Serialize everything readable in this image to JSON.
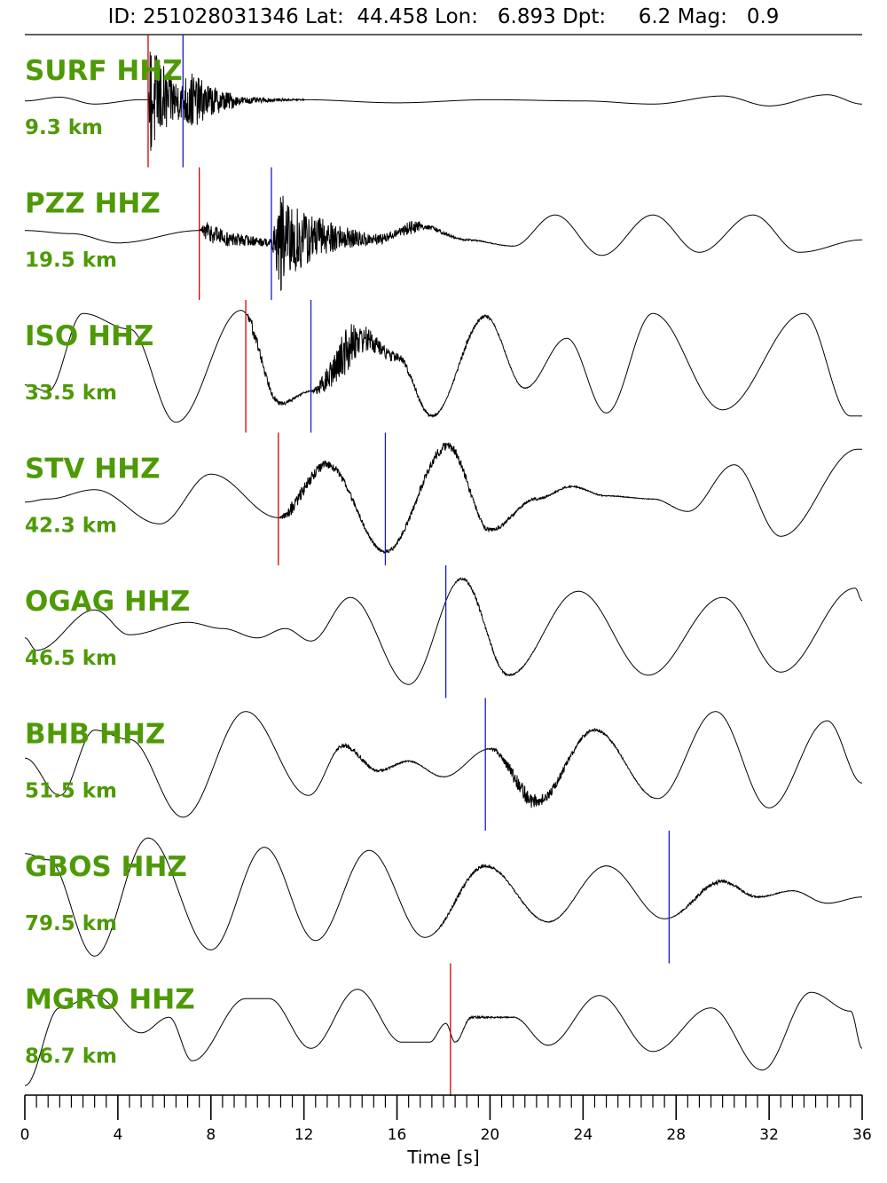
{
  "header": {
    "id_label": "ID:",
    "id": "251028031346",
    "lat_label": "Lat:",
    "lat": "44.458",
    "lon_label": "Lon:",
    "lon": "6.893",
    "dpt_label": "Dpt:",
    "dpt": "6.2",
    "mag_label": "Mag:",
    "mag": "0.9"
  },
  "colors": {
    "trace": "#000000",
    "label": "#4e9a06",
    "p_pick": "#d40000",
    "s_pick": "#1a1acc"
  },
  "chart_data": {
    "type": "line",
    "xlabel": "Time [s]",
    "xlim": [
      0,
      36
    ],
    "x_major_ticks": [
      0,
      4,
      8,
      12,
      16,
      20,
      24,
      28,
      32,
      36
    ],
    "x_minor_step": 0.5,
    "series": [
      {
        "name": "SURF HHZ",
        "distance": "9.3 km",
        "p_pick": 5.3,
        "s_pick": 6.8,
        "background": [
          {
            "t": 0,
            "a": 0.0
          },
          {
            "t": 1.5,
            "a": 0.06
          },
          {
            "t": 3,
            "a": -0.05
          },
          {
            "t": 5,
            "a": 0.02
          },
          {
            "t": 8,
            "a": 0.0
          },
          {
            "t": 12,
            "a": 0.02
          },
          {
            "t": 16,
            "a": -0.03
          },
          {
            "t": 20,
            "a": 0.02
          },
          {
            "t": 24,
            "a": 0.0
          },
          {
            "t": 27,
            "a": -0.05
          },
          {
            "t": 30,
            "a": 0.08
          },
          {
            "t": 32,
            "a": -0.08
          },
          {
            "t": 34.5,
            "a": 0.1
          },
          {
            "t": 36,
            "a": -0.05
          }
        ],
        "bursts": [
          {
            "start": 5.3,
            "peak": 5.4,
            "end": 9,
            "amp": 0.95
          },
          {
            "start": 6.8,
            "peak": 7.0,
            "end": 12,
            "amp": 0.3
          }
        ]
      },
      {
        "name": "PZZ HHZ",
        "distance": "19.5 km",
        "p_pick": 7.5,
        "s_pick": 10.6,
        "background": [
          {
            "t": 0,
            "a": 0.05
          },
          {
            "t": 2,
            "a": 0.0
          },
          {
            "t": 4,
            "a": -0.15
          },
          {
            "t": 7.5,
            "a": 0.05
          },
          {
            "t": 9,
            "a": -0.1
          },
          {
            "t": 11,
            "a": -0.15
          },
          {
            "t": 13,
            "a": -0.05
          },
          {
            "t": 15,
            "a": -0.1
          },
          {
            "t": 17,
            "a": 0.12
          },
          {
            "t": 19,
            "a": -0.1
          },
          {
            "t": 21,
            "a": -0.2
          },
          {
            "t": 22.8,
            "a": 0.3
          },
          {
            "t": 24.8,
            "a": -0.35
          },
          {
            "t": 27,
            "a": 0.3
          },
          {
            "t": 29,
            "a": -0.3
          },
          {
            "t": 31.3,
            "a": 0.3
          },
          {
            "t": 33.3,
            "a": -0.3
          },
          {
            "t": 36,
            "a": -0.1
          }
        ],
        "bursts": [
          {
            "start": 7.5,
            "peak": 7.8,
            "end": 16,
            "amp": 0.18
          },
          {
            "start": 10.6,
            "peak": 11.0,
            "end": 17,
            "amp": 0.75
          },
          {
            "start": 16,
            "peak": 16.5,
            "end": 21,
            "amp": 0.08
          }
        ]
      },
      {
        "name": "ISO HHZ",
        "distance": "33.5 km",
        "p_pick": 9.5,
        "s_pick": 12.3,
        "background": [
          {
            "t": 0,
            "a": -0.3
          },
          {
            "t": 1,
            "a": -0.4
          },
          {
            "t": 2.5,
            "a": 0.85
          },
          {
            "t": 4.5,
            "a": 0.6
          },
          {
            "t": 6.5,
            "a": -0.9
          },
          {
            "t": 9.3,
            "a": 0.9
          },
          {
            "t": 11,
            "a": -0.6
          },
          {
            "t": 12.3,
            "a": -0.4
          },
          {
            "t": 14.5,
            "a": 0.45
          },
          {
            "t": 16,
            "a": 0.15
          },
          {
            "t": 17.5,
            "a": -0.8
          },
          {
            "t": 19.8,
            "a": 0.8
          },
          {
            "t": 21.5,
            "a": -0.35
          },
          {
            "t": 23.3,
            "a": 0.45
          },
          {
            "t": 25,
            "a": -0.75
          },
          {
            "t": 27,
            "a": 0.85
          },
          {
            "t": 30,
            "a": -0.7
          },
          {
            "t": 33.5,
            "a": 0.85
          },
          {
            "t": 35.5,
            "a": -0.8
          },
          {
            "t": 36,
            "a": -0.8
          }
        ],
        "bursts": [
          {
            "start": 9.5,
            "peak": 9.8,
            "end": 13,
            "amp": 0.12
          },
          {
            "start": 12.3,
            "peak": 13.8,
            "end": 18,
            "amp": 0.4
          },
          {
            "start": 18,
            "peak": 19,
            "end": 23,
            "amp": 0.05
          }
        ]
      },
      {
        "name": "STV HHZ",
        "distance": "42.3 km",
        "p_pick": 10.9,
        "s_pick": 15.5,
        "background": [
          {
            "t": 0,
            "a": -0.05
          },
          {
            "t": 1,
            "a": 0.0
          },
          {
            "t": 3,
            "a": 0.15
          },
          {
            "t": 5.8,
            "a": -0.4
          },
          {
            "t": 8,
            "a": 0.4
          },
          {
            "t": 10.9,
            "a": -0.3
          },
          {
            "t": 13,
            "a": 0.55
          },
          {
            "t": 15.5,
            "a": -0.85
          },
          {
            "t": 18.2,
            "a": 0.85
          },
          {
            "t": 20,
            "a": -0.5
          },
          {
            "t": 22,
            "a": 0.0
          },
          {
            "t": 23.5,
            "a": 0.2
          },
          {
            "t": 25,
            "a": 0.05
          },
          {
            "t": 27,
            "a": 0.0
          },
          {
            "t": 28.5,
            "a": -0.2
          },
          {
            "t": 30.5,
            "a": 0.55
          },
          {
            "t": 32.5,
            "a": -0.6
          },
          {
            "t": 35.8,
            "a": 0.8
          },
          {
            "t": 36,
            "a": 0.8
          }
        ],
        "bursts": [
          {
            "start": 10.9,
            "peak": 11.5,
            "end": 20,
            "amp": 0.12
          },
          {
            "start": 15.5,
            "peak": 18,
            "end": 28,
            "amp": 0.07
          }
        ]
      },
      {
        "name": "OGAG HHZ",
        "distance": "46.5 km",
        "p_pick": null,
        "s_pick": 18.1,
        "background": [
          {
            "t": 0,
            "a": -0.1
          },
          {
            "t": 0.5,
            "a": -0.3
          },
          {
            "t": 3,
            "a": 0.35
          },
          {
            "t": 4.5,
            "a": -0.05
          },
          {
            "t": 7,
            "a": 0.15
          },
          {
            "t": 8.5,
            "a": 0.05
          },
          {
            "t": 10,
            "a": -0.1
          },
          {
            "t": 11.2,
            "a": 0.05
          },
          {
            "t": 12.3,
            "a": -0.15
          },
          {
            "t": 14,
            "a": 0.55
          },
          {
            "t": 16.5,
            "a": -0.85
          },
          {
            "t": 18.8,
            "a": 0.85
          },
          {
            "t": 20.8,
            "a": -0.7
          },
          {
            "t": 23.8,
            "a": 0.65
          },
          {
            "t": 26.8,
            "a": -0.7
          },
          {
            "t": 30,
            "a": 0.55
          },
          {
            "t": 32.5,
            "a": -0.65
          },
          {
            "t": 35.7,
            "a": 0.7
          },
          {
            "t": 36,
            "a": 0.5
          }
        ],
        "bursts": [
          {
            "start": 18.1,
            "peak": 19.5,
            "end": 24,
            "amp": 0.04
          }
        ]
      },
      {
        "name": "BHB HHZ",
        "distance": "51.5 km",
        "p_pick": null,
        "s_pick": 19.8,
        "background": [
          {
            "t": 0,
            "a": 0.1
          },
          {
            "t": 1.5,
            "a": -0.5
          },
          {
            "t": 3,
            "a": 0.55
          },
          {
            "t": 4.5,
            "a": 0.4
          },
          {
            "t": 6.8,
            "a": -0.85
          },
          {
            "t": 9.5,
            "a": 0.85
          },
          {
            "t": 12.2,
            "a": -0.5
          },
          {
            "t": 13.7,
            "a": 0.3
          },
          {
            "t": 15.2,
            "a": -0.1
          },
          {
            "t": 16.5,
            "a": 0.05
          },
          {
            "t": 18,
            "a": -0.2
          },
          {
            "t": 20,
            "a": 0.25
          },
          {
            "t": 22,
            "a": -0.6
          },
          {
            "t": 24.5,
            "a": 0.55
          },
          {
            "t": 27.2,
            "a": -0.55
          },
          {
            "t": 29.7,
            "a": 0.85
          },
          {
            "t": 32,
            "a": -0.7
          },
          {
            "t": 34.5,
            "a": 0.7
          },
          {
            "t": 36,
            "a": -0.3
          }
        ],
        "bursts": [
          {
            "start": 13,
            "peak": 14,
            "end": 19,
            "amp": 0.05
          },
          {
            "start": 19.8,
            "peak": 21.5,
            "end": 27,
            "amp": 0.15
          }
        ]
      },
      {
        "name": "GBOS HHZ",
        "distance": "79.5 km",
        "p_pick": null,
        "s_pick": 27.7,
        "background": [
          {
            "t": 0,
            "a": 0.7
          },
          {
            "t": 1,
            "a": 0.6
          },
          {
            "t": 3,
            "a": -0.95
          },
          {
            "t": 5.3,
            "a": 0.95
          },
          {
            "t": 8,
            "a": -0.85
          },
          {
            "t": 10.3,
            "a": 0.8
          },
          {
            "t": 12.5,
            "a": -0.7
          },
          {
            "t": 14.8,
            "a": 0.75
          },
          {
            "t": 17.2,
            "a": -0.65
          },
          {
            "t": 19.8,
            "a": 0.5
          },
          {
            "t": 22.5,
            "a": -0.4
          },
          {
            "t": 25,
            "a": 0.5
          },
          {
            "t": 27.5,
            "a": -0.35
          },
          {
            "t": 30,
            "a": 0.25
          },
          {
            "t": 31.5,
            "a": 0.0
          },
          {
            "t": 33,
            "a": 0.1
          },
          {
            "t": 34.5,
            "a": -0.1
          },
          {
            "t": 36,
            "a": 0.0
          }
        ],
        "bursts": [
          {
            "start": 17.5,
            "peak": 18.5,
            "end": 26,
            "amp": 0.04
          },
          {
            "start": 27.7,
            "peak": 29.5,
            "end": 35,
            "amp": 0.04
          }
        ]
      },
      {
        "name": "MGRO HHZ",
        "distance": "86.7 km",
        "p_pick": 18.3,
        "s_pick": null,
        "background": [
          {
            "t": 0,
            "a": -0.9
          },
          {
            "t": 1.5,
            "a": 0.35
          },
          {
            "t": 3,
            "a": 0.55
          },
          {
            "t": 5,
            "a": -0.05
          },
          {
            "t": 6.2,
            "a": 0.2
          },
          {
            "t": 7.2,
            "a": -0.5
          },
          {
            "t": 9.5,
            "a": 0.5
          },
          {
            "t": 10.5,
            "a": 0.5
          },
          {
            "t": 12.3,
            "a": -0.3
          },
          {
            "t": 14.3,
            "a": 0.65
          },
          {
            "t": 16.2,
            "a": -0.2
          },
          {
            "t": 17.4,
            "a": -0.2
          },
          {
            "t": 18.1,
            "a": 0.1
          },
          {
            "t": 18.5,
            "a": -0.2
          },
          {
            "t": 19.2,
            "a": 0.2
          },
          {
            "t": 21,
            "a": 0.2
          },
          {
            "t": 22.5,
            "a": -0.25
          },
          {
            "t": 24.7,
            "a": 0.55
          },
          {
            "t": 27,
            "a": -0.35
          },
          {
            "t": 29.5,
            "a": 0.35
          },
          {
            "t": 31.7,
            "a": -0.65
          },
          {
            "t": 33.8,
            "a": 0.6
          },
          {
            "t": 35.5,
            "a": 0.3
          },
          {
            "t": 36,
            "a": -0.3
          }
        ],
        "bursts": [
          {
            "start": 18.3,
            "peak": 19.5,
            "end": 24,
            "amp": 0.02
          }
        ]
      }
    ]
  }
}
